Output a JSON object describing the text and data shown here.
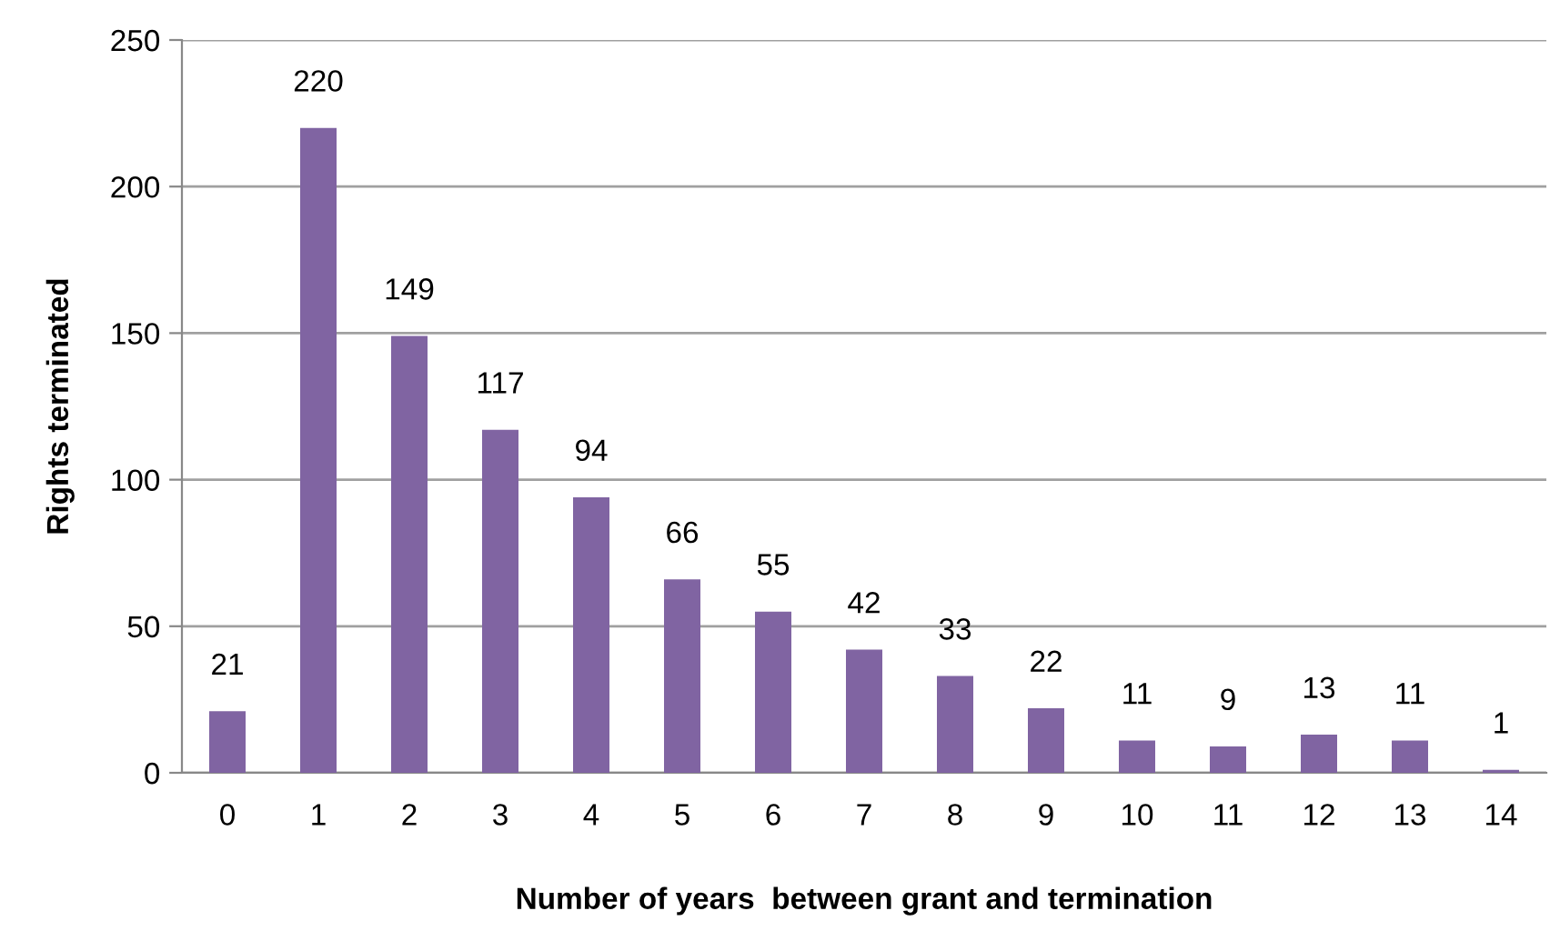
{
  "chart_data": {
    "type": "bar",
    "categories": [
      "0",
      "1",
      "2",
      "3",
      "4",
      "5",
      "6",
      "7",
      "8",
      "9",
      "10",
      "11",
      "12",
      "13",
      "14"
    ],
    "values": [
      21,
      220,
      149,
      117,
      94,
      66,
      55,
      42,
      33,
      22,
      11,
      9,
      13,
      11,
      1
    ],
    "color": "#8064a2",
    "xlabel": "Number of years  between grant and termination",
    "ylabel": "Rights terminated",
    "ylim": [
      0,
      250
    ],
    "yticks": [
      0,
      50,
      100,
      150,
      200,
      250
    ],
    "grid": "y",
    "data_labels": true
  }
}
